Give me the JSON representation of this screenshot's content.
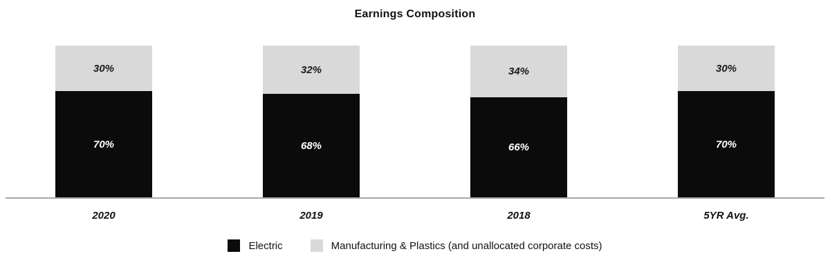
{
  "title": "Earnings Composition",
  "chart_data": {
    "type": "bar",
    "stacked": true,
    "title": "Earnings Composition",
    "categories": [
      "2020",
      "2019",
      "2018",
      "5YR Avg."
    ],
    "series": [
      {
        "name": "Electric",
        "color": "#0b0b0b",
        "label_color": "#ffffff",
        "values": [
          70,
          68,
          66,
          70
        ]
      },
      {
        "name": "Manufacturing & Plastics (and unallocated corporate costs)",
        "color": "#d9d9d9",
        "label_color": "#1a1a1a",
        "values": [
          30,
          32,
          34,
          30
        ]
      }
    ],
    "value_suffix": "%",
    "ylim": [
      0,
      100
    ],
    "grid": false,
    "legend_position": "bottom",
    "axis_line_color": "#a6a6a6"
  }
}
